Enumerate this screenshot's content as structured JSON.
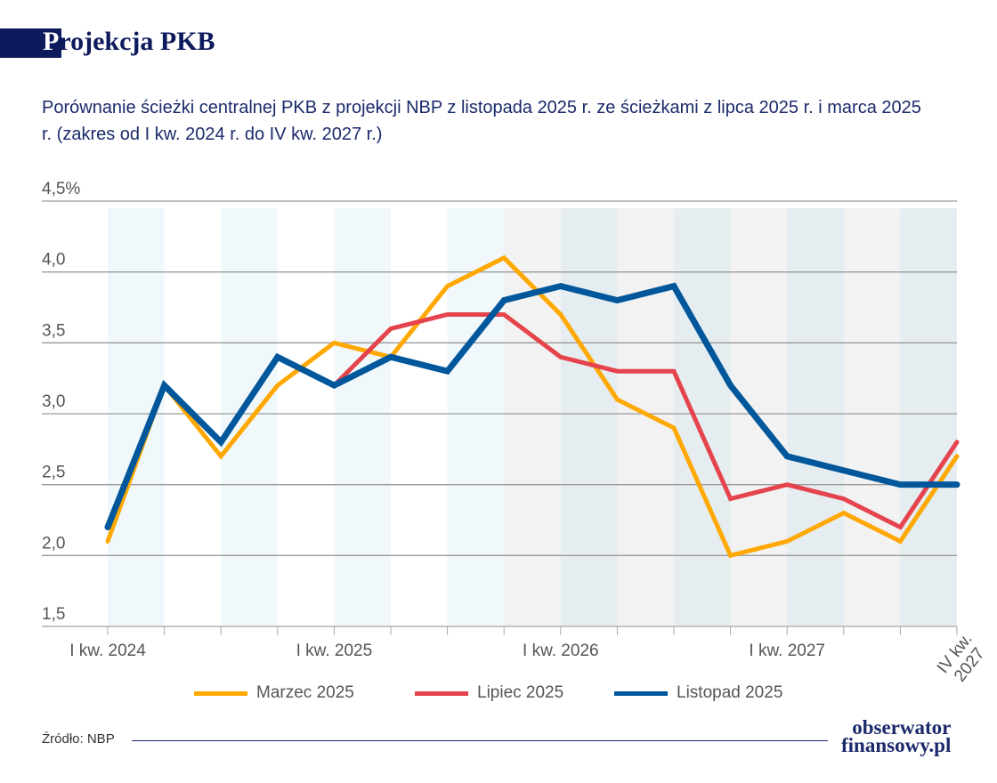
{
  "header": {
    "title_first_letter": "P",
    "title_rest": "rojekcja PKB"
  },
  "subtitle": "Porównanie ścieżki centralnej PKB z projekcji NBP z listopada 2025 r. ze ścieżkami z lipca 2025 r. i marca 2025 r. (zakres od I kw. 2024 r. do IV kw. 2027 r.)",
  "chart_data": {
    "type": "line",
    "title": "",
    "xlabel": "",
    "ylabel": "",
    "ylim": [
      1.5,
      4.5
    ],
    "y_ticks": [
      "4,5%",
      "4,0",
      "3,5",
      "3,0",
      "2,5",
      "2,0",
      "1,5"
    ],
    "y_tick_values": [
      4.5,
      4.0,
      3.5,
      3.0,
      2.5,
      2.0,
      1.5
    ],
    "x": [
      "I kw. 2024",
      "II kw. 2024",
      "III kw. 2024",
      "IV kw. 2024",
      "I kw. 2025",
      "II kw. 2025",
      "III kw. 2025",
      "IV kw. 2025",
      "I kw. 2026",
      "II kw. 2026",
      "III kw. 2026",
      "IV kw. 2026",
      "I kw. 2027",
      "II kw. 2027",
      "III kw. 2027",
      "IV kw. 2027"
    ],
    "x_tick_labels": [
      {
        "index": 0,
        "label": "I kw. 2024"
      },
      {
        "index": 4,
        "label": "I kw. 2025"
      },
      {
        "index": 8,
        "label": "I kw. 2026"
      },
      {
        "index": 12,
        "label": "I kw. 2027"
      },
      {
        "index": 15,
        "label": "IV kw. 2027"
      }
    ],
    "projection_shading_from_index": 7,
    "grid": true,
    "legend_position": "bottom",
    "series": [
      {
        "name": "Marzec 2025",
        "color": "#ffa800",
        "values": [
          2.1,
          3.2,
          2.7,
          3.2,
          3.5,
          3.4,
          3.9,
          4.1,
          3.7,
          3.1,
          2.9,
          2.0,
          2.1,
          2.3,
          2.1,
          2.7
        ]
      },
      {
        "name": "Lipiec 2025",
        "color": "#e5444d",
        "values": [
          null,
          null,
          null,
          null,
          3.2,
          3.6,
          3.7,
          3.7,
          3.4,
          3.3,
          3.3,
          2.4,
          2.5,
          2.4,
          2.2,
          2.8
        ]
      },
      {
        "name": "Listopad 2025",
        "color": "#00579b",
        "values": [
          2.2,
          3.2,
          2.8,
          3.4,
          3.2,
          3.4,
          3.3,
          3.8,
          3.9,
          3.8,
          3.9,
          3.2,
          2.7,
          2.6,
          2.5,
          2.5
        ]
      }
    ]
  },
  "footer": {
    "source": "Źródło: NBP",
    "logo_line1": "obserwator",
    "logo_line2": "finansowy.pl"
  }
}
